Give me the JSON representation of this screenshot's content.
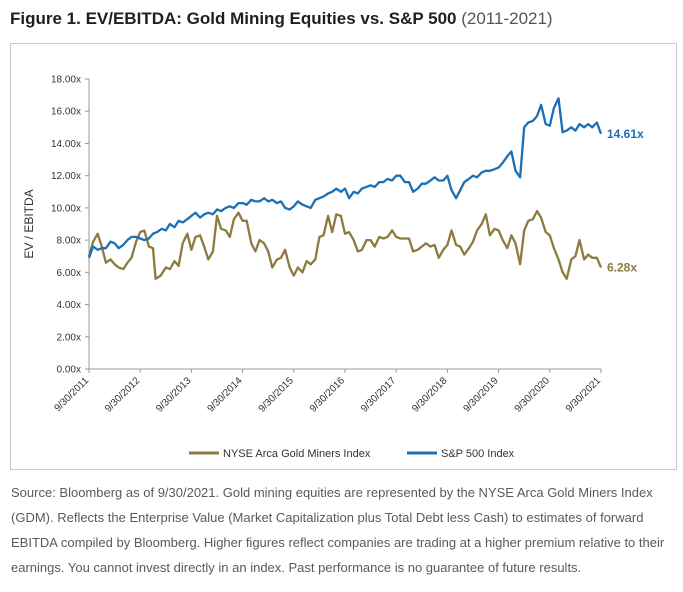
{
  "figure": {
    "title_bold": "Figure 1. EV/EBITDA: Gold Mining Equities vs. S&P 500",
    "title_light": "(2011-2021)",
    "source_note": "Source: Bloomberg as of 9/30/2021. Gold mining equities are represented by the NYSE Arca Gold Miners Index (GDM). Reflects the Enterprise Value (Market Capitalization plus Total Debt less Cash) to estimates of forward EBITDA compiled by Bloomberg. Higher figures reflect companies are trading at a higher premium relative to their earnings. You cannot invest directly in an index. Past performance is no guarantee of future results."
  },
  "chart_data": {
    "type": "line",
    "title": "",
    "xlabel": "",
    "ylabel": "EV / EBITDA",
    "ylim": [
      0,
      18
    ],
    "yticks": [
      0,
      2,
      4,
      6,
      8,
      10,
      12,
      14,
      16,
      18
    ],
    "ytick_labels": [
      "0.00x",
      "2.00x",
      "4.00x",
      "6.00x",
      "8.00x",
      "10.00x",
      "12.00x",
      "14.00x",
      "16.00x",
      "18.00x"
    ],
    "xlim": [
      2011.75,
      2021.75
    ],
    "xticks": [
      2011.75,
      2012.75,
      2013.75,
      2014.75,
      2015.75,
      2016.75,
      2017.75,
      2018.75,
      2019.75,
      2020.75,
      2021.75
    ],
    "xtick_labels": [
      "9/30/2011",
      "9/30/2012",
      "9/30/2013",
      "9/30/2014",
      "9/30/2015",
      "9/30/2016",
      "9/30/2017",
      "9/30/2018",
      "9/30/2019",
      "9/30/2020",
      "9/30/2021"
    ],
    "grid": false,
    "legend_position": "bottom",
    "series": [
      {
        "name": "NYSE Arca Gold Miners Index",
        "color": "#8c7a3e",
        "end_label": "6.28x",
        "points": [
          [
            2011.75,
            7.0
          ],
          [
            2011.83,
            7.9
          ],
          [
            2011.92,
            8.4
          ],
          [
            2012.0,
            7.6
          ],
          [
            2012.08,
            6.6
          ],
          [
            2012.17,
            6.8
          ],
          [
            2012.25,
            6.5
          ],
          [
            2012.33,
            6.3
          ],
          [
            2012.42,
            6.2
          ],
          [
            2012.5,
            6.6
          ],
          [
            2012.58,
            6.9
          ],
          [
            2012.67,
            7.9
          ],
          [
            2012.75,
            8.5
          ],
          [
            2012.83,
            8.6
          ],
          [
            2012.92,
            7.6
          ],
          [
            2013.0,
            7.5
          ],
          [
            2013.05,
            5.6
          ],
          [
            2013.15,
            5.8
          ],
          [
            2013.25,
            6.3
          ],
          [
            2013.33,
            6.2
          ],
          [
            2013.42,
            6.7
          ],
          [
            2013.5,
            6.4
          ],
          [
            2013.58,
            7.8
          ],
          [
            2013.67,
            8.4
          ],
          [
            2013.75,
            7.4
          ],
          [
            2013.83,
            8.2
          ],
          [
            2013.92,
            8.3
          ],
          [
            2014.0,
            7.6
          ],
          [
            2014.08,
            6.8
          ],
          [
            2014.17,
            7.3
          ],
          [
            2014.25,
            9.5
          ],
          [
            2014.33,
            8.7
          ],
          [
            2014.42,
            8.6
          ],
          [
            2014.5,
            8.2
          ],
          [
            2014.58,
            9.3
          ],
          [
            2014.67,
            9.7
          ],
          [
            2014.75,
            9.2
          ],
          [
            2014.83,
            9.2
          ],
          [
            2014.92,
            7.8
          ],
          [
            2015.0,
            7.3
          ],
          [
            2015.08,
            8.0
          ],
          [
            2015.17,
            7.8
          ],
          [
            2015.25,
            7.3
          ],
          [
            2015.33,
            6.3
          ],
          [
            2015.42,
            6.8
          ],
          [
            2015.5,
            6.9
          ],
          [
            2015.58,
            7.4
          ],
          [
            2015.67,
            6.3
          ],
          [
            2015.75,
            5.8
          ],
          [
            2015.83,
            6.3
          ],
          [
            2015.92,
            6.0
          ],
          [
            2016.0,
            6.7
          ],
          [
            2016.08,
            6.5
          ],
          [
            2016.17,
            6.8
          ],
          [
            2016.25,
            8.2
          ],
          [
            2016.33,
            8.3
          ],
          [
            2016.42,
            9.5
          ],
          [
            2016.5,
            8.5
          ],
          [
            2016.58,
            9.6
          ],
          [
            2016.67,
            9.5
          ],
          [
            2016.75,
            8.4
          ],
          [
            2016.83,
            8.5
          ],
          [
            2016.92,
            8.0
          ],
          [
            2017.0,
            7.3
          ],
          [
            2017.08,
            7.4
          ],
          [
            2017.17,
            8.0
          ],
          [
            2017.25,
            8.0
          ],
          [
            2017.33,
            7.6
          ],
          [
            2017.42,
            8.2
          ],
          [
            2017.5,
            8.1
          ],
          [
            2017.58,
            8.2
          ],
          [
            2017.67,
            8.6
          ],
          [
            2017.75,
            8.2
          ],
          [
            2017.83,
            8.1
          ],
          [
            2017.92,
            8.1
          ],
          [
            2018.0,
            8.1
          ],
          [
            2018.08,
            7.3
          ],
          [
            2018.17,
            7.4
          ],
          [
            2018.25,
            7.6
          ],
          [
            2018.33,
            7.8
          ],
          [
            2018.42,
            7.6
          ],
          [
            2018.5,
            7.7
          ],
          [
            2018.58,
            6.9
          ],
          [
            2018.67,
            7.4
          ],
          [
            2018.75,
            7.7
          ],
          [
            2018.83,
            8.6
          ],
          [
            2018.92,
            7.7
          ],
          [
            2019.0,
            7.6
          ],
          [
            2019.08,
            7.1
          ],
          [
            2019.17,
            7.5
          ],
          [
            2019.25,
            7.9
          ],
          [
            2019.33,
            8.6
          ],
          [
            2019.42,
            9.0
          ],
          [
            2019.5,
            9.6
          ],
          [
            2019.58,
            8.3
          ],
          [
            2019.67,
            8.7
          ],
          [
            2019.75,
            8.6
          ],
          [
            2019.83,
            8.0
          ],
          [
            2019.92,
            7.5
          ],
          [
            2020.0,
            8.3
          ],
          [
            2020.08,
            7.8
          ],
          [
            2020.17,
            6.5
          ],
          [
            2020.25,
            8.6
          ],
          [
            2020.33,
            9.2
          ],
          [
            2020.42,
            9.3
          ],
          [
            2020.5,
            9.8
          ],
          [
            2020.58,
            9.4
          ],
          [
            2020.67,
            8.5
          ],
          [
            2020.75,
            8.3
          ],
          [
            2020.83,
            7.5
          ],
          [
            2020.92,
            6.8
          ],
          [
            2021.0,
            6.0
          ],
          [
            2021.08,
            5.6
          ],
          [
            2021.17,
            6.8
          ],
          [
            2021.25,
            7.0
          ],
          [
            2021.33,
            8.0
          ],
          [
            2021.42,
            6.8
          ],
          [
            2021.5,
            7.1
          ],
          [
            2021.58,
            6.9
          ],
          [
            2021.67,
            6.9
          ],
          [
            2021.75,
            6.3
          ]
        ]
      },
      {
        "name": "S&P 500 Index",
        "color": "#1c6fb4",
        "end_label": "14.61x",
        "points": [
          [
            2011.75,
            6.9
          ],
          [
            2011.83,
            7.6
          ],
          [
            2011.92,
            7.4
          ],
          [
            2012.0,
            7.5
          ],
          [
            2012.08,
            7.5
          ],
          [
            2012.17,
            7.9
          ],
          [
            2012.25,
            7.8
          ],
          [
            2012.33,
            7.5
          ],
          [
            2012.42,
            7.7
          ],
          [
            2012.5,
            8.0
          ],
          [
            2012.58,
            8.2
          ],
          [
            2012.67,
            8.2
          ],
          [
            2012.75,
            8.1
          ],
          [
            2012.83,
            8.0
          ],
          [
            2012.92,
            8.1
          ],
          [
            2013.0,
            8.4
          ],
          [
            2013.08,
            8.5
          ],
          [
            2013.17,
            8.7
          ],
          [
            2013.25,
            8.6
          ],
          [
            2013.33,
            9.0
          ],
          [
            2013.42,
            8.8
          ],
          [
            2013.5,
            9.2
          ],
          [
            2013.58,
            9.1
          ],
          [
            2013.67,
            9.3
          ],
          [
            2013.75,
            9.5
          ],
          [
            2013.83,
            9.7
          ],
          [
            2013.92,
            9.4
          ],
          [
            2014.0,
            9.6
          ],
          [
            2014.08,
            9.7
          ],
          [
            2014.17,
            9.6
          ],
          [
            2014.25,
            9.9
          ],
          [
            2014.33,
            9.8
          ],
          [
            2014.42,
            10.0
          ],
          [
            2014.5,
            10.1
          ],
          [
            2014.58,
            10.0
          ],
          [
            2014.67,
            10.3
          ],
          [
            2014.75,
            10.3
          ],
          [
            2014.83,
            10.2
          ],
          [
            2014.92,
            10.5
          ],
          [
            2015.0,
            10.4
          ],
          [
            2015.08,
            10.4
          ],
          [
            2015.17,
            10.6
          ],
          [
            2015.25,
            10.4
          ],
          [
            2015.33,
            10.5
          ],
          [
            2015.42,
            10.3
          ],
          [
            2015.5,
            10.4
          ],
          [
            2015.58,
            10.0
          ],
          [
            2015.67,
            9.9
          ],
          [
            2015.75,
            10.1
          ],
          [
            2015.83,
            10.4
          ],
          [
            2015.92,
            10.2
          ],
          [
            2016.0,
            10.1
          ],
          [
            2016.08,
            10.0
          ],
          [
            2016.17,
            10.5
          ],
          [
            2016.25,
            10.6
          ],
          [
            2016.33,
            10.7
          ],
          [
            2016.42,
            10.9
          ],
          [
            2016.5,
            11.0
          ],
          [
            2016.58,
            11.2
          ],
          [
            2016.67,
            11.0
          ],
          [
            2016.75,
            11.2
          ],
          [
            2016.83,
            10.6
          ],
          [
            2016.92,
            11.0
          ],
          [
            2017.0,
            10.9
          ],
          [
            2017.08,
            11.2
          ],
          [
            2017.17,
            11.3
          ],
          [
            2017.25,
            11.4
          ],
          [
            2017.33,
            11.3
          ],
          [
            2017.42,
            11.6
          ],
          [
            2017.5,
            11.6
          ],
          [
            2017.58,
            11.8
          ],
          [
            2017.67,
            11.7
          ],
          [
            2017.75,
            12.0
          ],
          [
            2017.83,
            12.0
          ],
          [
            2017.92,
            11.6
          ],
          [
            2018.0,
            11.6
          ],
          [
            2018.08,
            11.0
          ],
          [
            2018.17,
            11.2
          ],
          [
            2018.25,
            11.5
          ],
          [
            2018.33,
            11.5
          ],
          [
            2018.42,
            11.7
          ],
          [
            2018.5,
            11.9
          ],
          [
            2018.58,
            11.7
          ],
          [
            2018.67,
            11.7
          ],
          [
            2018.75,
            12.0
          ],
          [
            2018.83,
            11.1
          ],
          [
            2018.92,
            10.6
          ],
          [
            2019.0,
            11.1
          ],
          [
            2019.08,
            11.6
          ],
          [
            2019.17,
            11.8
          ],
          [
            2019.25,
            12.0
          ],
          [
            2019.33,
            11.9
          ],
          [
            2019.42,
            12.2
          ],
          [
            2019.5,
            12.3
          ],
          [
            2019.58,
            12.3
          ],
          [
            2019.67,
            12.4
          ],
          [
            2019.75,
            12.5
          ],
          [
            2019.83,
            12.8
          ],
          [
            2019.92,
            13.2
          ],
          [
            2020.0,
            13.5
          ],
          [
            2020.08,
            12.3
          ],
          [
            2020.17,
            11.9
          ],
          [
            2020.25,
            15.0
          ],
          [
            2020.33,
            15.3
          ],
          [
            2020.42,
            15.4
          ],
          [
            2020.5,
            15.7
          ],
          [
            2020.58,
            16.4
          ],
          [
            2020.67,
            15.2
          ],
          [
            2020.75,
            15.1
          ],
          [
            2020.83,
            16.2
          ],
          [
            2020.92,
            16.8
          ],
          [
            2021.0,
            14.7
          ],
          [
            2021.08,
            14.8
          ],
          [
            2021.17,
            15.0
          ],
          [
            2021.25,
            14.8
          ],
          [
            2021.33,
            15.2
          ],
          [
            2021.42,
            15.0
          ],
          [
            2021.5,
            15.2
          ],
          [
            2021.58,
            15.0
          ],
          [
            2021.67,
            15.3
          ],
          [
            2021.75,
            14.6
          ]
        ]
      }
    ]
  }
}
